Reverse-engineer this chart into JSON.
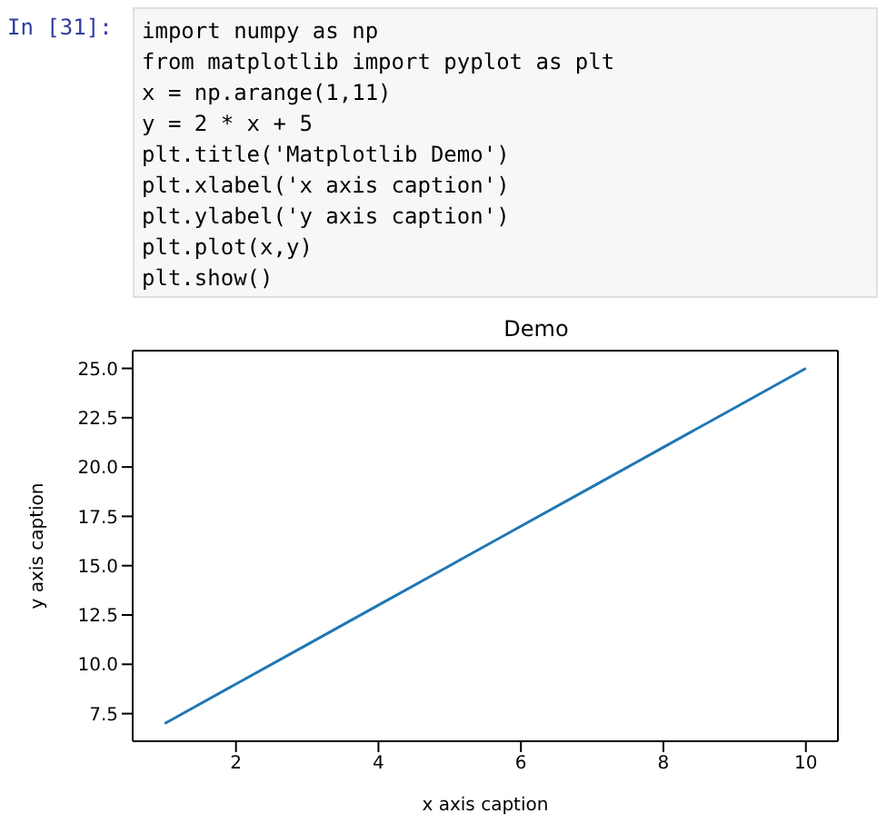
{
  "chart_data": {
    "type": "line",
    "title": "Demo",
    "xlabel": "x axis caption",
    "ylabel": "y axis caption",
    "annotations": [
      "In [31]:",
      "import numpy as np",
      "from matplotlib import pyplot as plt",
      "x = np.arange(1,11)",
      "y = 2 * x + 5",
      "plt.title('Matplotlib Demo')",
      "plt.xlabel('x axis caption')",
      "plt.ylabel('y axis caption')",
      "plt.plot(x,y)",
      "plt.show()"
    ],
    "x": [
      1,
      2,
      3,
      4,
      5,
      6,
      7,
      8,
      9,
      10
    ],
    "series": [
      {
        "color": "#1f77b4",
        "values": [
          7,
          9,
          11,
          13,
          15,
          17,
          19,
          21,
          23,
          25
        ]
      }
    ],
    "xlim": [
      0.55,
      10.45
    ],
    "ylim": [
      6.1,
      25.9
    ],
    "xticks": [
      2,
      4,
      6,
      8,
      10
    ],
    "yticks": [
      7.5,
      {
        "value": 10,
        "label": "10.0"
      },
      12.5,
      {
        "value": 15,
        "label": "15.0"
      },
      17.5,
      {
        "value": 20,
        "label": "20.0"
      },
      22.5,
      {
        "value": 25,
        "label": "25.0"
      }
    ],
    "grid": false,
    "marker": "none",
    "line_style": "solid"
  }
}
